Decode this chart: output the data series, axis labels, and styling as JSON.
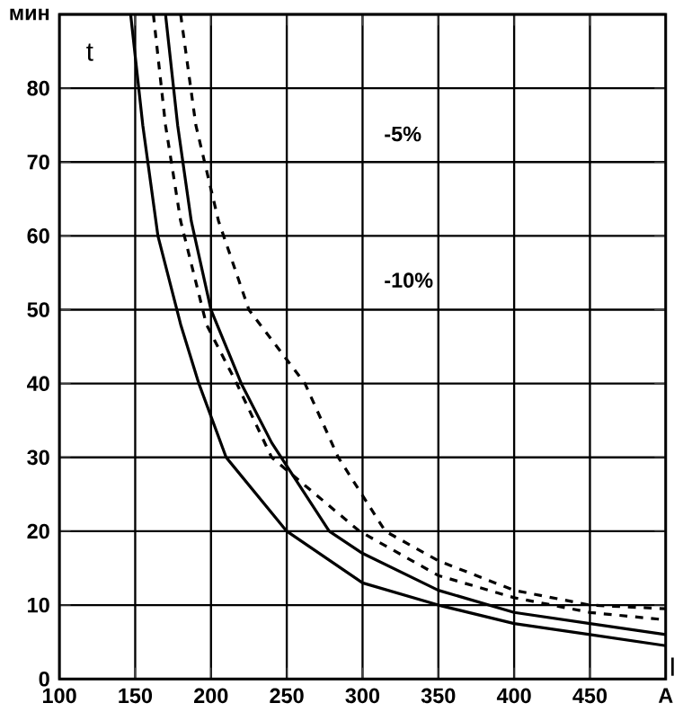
{
  "chart_data": {
    "type": "line",
    "xlabel": "I",
    "ylabel": "t",
    "xlim": [
      100,
      500
    ],
    "ylim": [
      0,
      90
    ],
    "xticks": [
      100,
      150,
      200,
      250,
      300,
      350,
      400,
      450,
      {
        "value": 500,
        "label": "A"
      }
    ],
    "yticks": [
      0,
      10,
      20,
      30,
      40,
      50,
      60,
      70,
      80,
      {
        "value": 90,
        "label": "мин"
      }
    ],
    "grid": true,
    "annotations": [
      "-5%",
      "-10%"
    ],
    "series": [
      {
        "color": "#000000",
        "line_style": "solid",
        "x": [
          147,
          155,
          165,
          180,
          192,
          210,
          250,
          300,
          350,
          400,
          450,
          500
        ],
        "values": [
          90,
          75,
          60,
          48,
          40,
          30,
          20,
          13,
          10,
          7.5,
          6,
          4.5
        ]
      },
      {
        "color": "#000000",
        "line_style": "dashed",
        "x": [
          162,
          170,
          180,
          197,
          217,
          240,
          298,
          350,
          400,
          450,
          500
        ],
        "values": [
          90,
          75,
          62,
          48,
          40,
          30,
          20,
          14,
          11,
          9,
          8
        ]
      },
      {
        "color": "#000000",
        "line_style": "solid",
        "x": [
          170,
          178,
          187,
          200,
          220,
          240,
          278,
          300,
          350,
          400,
          450,
          500
        ],
        "values": [
          90,
          75,
          62,
          50,
          40,
          32,
          20,
          17,
          12,
          9,
          7.5,
          6
        ]
      },
      {
        "color": "#000000",
        "line_style": "dashed",
        "x": [
          180,
          190,
          205,
          225,
          262,
          284,
          315,
          350,
          400,
          450,
          500
        ],
        "values": [
          90,
          75,
          62,
          50,
          40,
          30,
          20,
          16,
          12,
          10,
          9.5
        ]
      }
    ]
  }
}
